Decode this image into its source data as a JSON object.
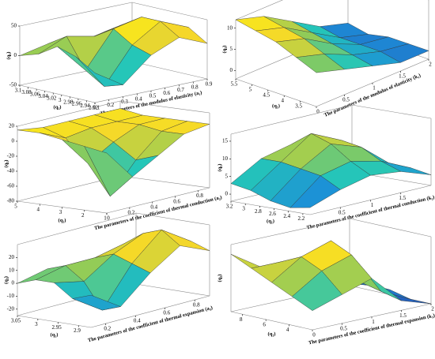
{
  "chart_data": [
    {
      "type": "surface",
      "xlabel": "The parameters of the modulus of elasticity (a₁)",
      "ylabel": "(q₁)",
      "zlabel": "(q₃)",
      "xlim": [
        0.1,
        0.9
      ],
      "xticks": [
        0.1,
        0.2,
        0.3,
        0.4,
        0.5,
        0.6,
        0.7,
        0.8,
        0.9
      ],
      "ylim": [
        2.92,
        3.1
      ],
      "yticks": [
        3.1,
        3.08,
        3.06,
        3.04,
        3.02,
        3,
        2.98,
        2.96,
        2.94,
        2.92
      ],
      "zlim": [
        -50,
        50
      ],
      "zticks": [
        -50,
        0,
        50
      ],
      "x": [
        0.1,
        0.3,
        0.5,
        0.7,
        0.9
      ],
      "y": [
        2.92,
        2.965,
        3.01,
        3.055,
        3.1
      ],
      "z": [
        [
          0,
          -30,
          10,
          30,
          10
        ],
        [
          20,
          -40,
          20,
          50,
          30
        ],
        [
          30,
          -20,
          40,
          50,
          20
        ],
        [
          10,
          30,
          20,
          30,
          0
        ],
        [
          0,
          10,
          0,
          10,
          -10
        ]
      ]
    },
    {
      "type": "surface",
      "xlabel": "The parameters of the modulus of elasticity (k₁)",
      "ylabel": "(q₁)",
      "zlabel": "(q₃)",
      "xlim": [
        0,
        2
      ],
      "xticks": [
        0,
        0.5,
        1,
        1.5,
        2
      ],
      "ylim": [
        3,
        5.5
      ],
      "yticks": [
        5.5,
        5,
        4.5,
        4,
        3.5
      ],
      "zlim": [
        -2,
        12
      ],
      "zticks": [
        0,
        5,
        10
      ],
      "x": [
        0,
        0.5,
        1,
        1.5,
        2
      ],
      "y": [
        3,
        3.625,
        4.25,
        4.875,
        5.5
      ],
      "z": [
        [
          6,
          4,
          2,
          0,
          0
        ],
        [
          8,
          6,
          3,
          1,
          0
        ],
        [
          10,
          8,
          4,
          1,
          0
        ],
        [
          11,
          9,
          5,
          1,
          -1
        ],
        [
          12,
          10,
          6,
          2,
          0
        ]
      ]
    },
    {
      "type": "surface",
      "xlabel": "The parameters of the coefficient of thermal conduction (a₂)",
      "ylabel": "(q₁)",
      "zlabel": "(q₃)",
      "xlim": [
        0,
        0.9
      ],
      "xticks": [
        0,
        0.2,
        0.4,
        0.6,
        0.8
      ],
      "ylim": [
        1,
        5
      ],
      "yticks": [
        5,
        4,
        3,
        2,
        1
      ],
      "zlim": [
        -80,
        20
      ],
      "zticks": [
        -80,
        -60,
        -40,
        -20,
        0,
        20
      ],
      "x": [
        0,
        0.225,
        0.45,
        0.675,
        0.9
      ],
      "y": [
        1,
        2,
        3,
        4,
        5
      ],
      "z": [
        [
          0,
          -40,
          -20,
          0,
          5
        ],
        [
          5,
          -70,
          -30,
          0,
          5
        ],
        [
          10,
          -30,
          -10,
          5,
          5
        ],
        [
          15,
          0,
          5,
          5,
          5
        ],
        [
          15,
          10,
          10,
          10,
          10
        ]
      ]
    },
    {
      "type": "surface",
      "xlabel": "The parameters of the coefficient of thermal conduction (k₂)",
      "ylabel": "(q₁)",
      "zlabel": "(q₃)",
      "xlim": [
        0,
        2
      ],
      "xticks": [
        0.5,
        1,
        1.5
      ],
      "ylim": [
        2.1,
        3.2
      ],
      "yticks": [
        3.2,
        3,
        2.8,
        2.6,
        2.4,
        2.2
      ],
      "zlim": [
        -2,
        17
      ],
      "zticks": [
        0,
        5,
        10,
        15
      ],
      "x": [
        0,
        0.5,
        1,
        1.5,
        2
      ],
      "y": [
        2.1,
        2.375,
        2.65,
        2.925,
        3.2
      ],
      "z": [
        [
          0,
          3,
          5,
          4,
          1
        ],
        [
          -1,
          6,
          8,
          6,
          2
        ],
        [
          0,
          7,
          12,
          9,
          2
        ],
        [
          2,
          8,
          14,
          10,
          2
        ],
        [
          3,
          8,
          10,
          6,
          1
        ]
      ]
    },
    {
      "type": "surface",
      "xlabel": "The parameters of the coefficient of thermal expansion (a₃)",
      "ylabel": "(q₁)",
      "zlabel": "(q₃)",
      "xlim": [
        0.1,
        0.9
      ],
      "xticks": [
        0.2,
        0.4,
        0.6,
        0.8
      ],
      "ylim": [
        2.87,
        3.05
      ],
      "yticks": [
        3.05,
        3,
        2.95,
        2.9
      ],
      "zlim": [
        -25,
        30
      ],
      "zticks": [
        -20,
        -10,
        0,
        10,
        20
      ],
      "x": [
        0.1,
        0.3,
        0.5,
        0.7,
        0.9
      ],
      "y": [
        2.87,
        2.915,
        2.96,
        3.005,
        3.05
      ],
      "z": [
        [
          0,
          -15,
          5,
          20,
          10
        ],
        [
          -5,
          -20,
          10,
          30,
          15
        ],
        [
          5,
          0,
          15,
          25,
          10
        ],
        [
          5,
          10,
          10,
          15,
          0
        ],
        [
          0,
          5,
          0,
          0,
          0
        ]
      ]
    },
    {
      "type": "surface",
      "xlabel": "The parameters of the coefficient of thermal expansion (k₃)",
      "ylabel": "(q₁)",
      "zlabel": "(q₃)",
      "xlim": [
        0,
        2
      ],
      "xticks": [
        0,
        0.5,
        1,
        1.5,
        2
      ],
      "ylim": [
        2,
        9
      ],
      "yticks": [
        8,
        6,
        4
      ],
      "zlim": [
        0,
        14
      ],
      "zticks": [],
      "x": [
        0,
        0.5,
        1,
        1.5,
        2
      ],
      "y": [
        2,
        3.75,
        5.5,
        7.25,
        9
      ],
      "z": [
        [
          4,
          6,
          8,
          2,
          0
        ],
        [
          6,
          10,
          12,
          3,
          0
        ],
        [
          8,
          12,
          14,
          4,
          1
        ],
        [
          10,
          10,
          10,
          3,
          1
        ],
        [
          12,
          8,
          6,
          2,
          1
        ]
      ]
    }
  ]
}
